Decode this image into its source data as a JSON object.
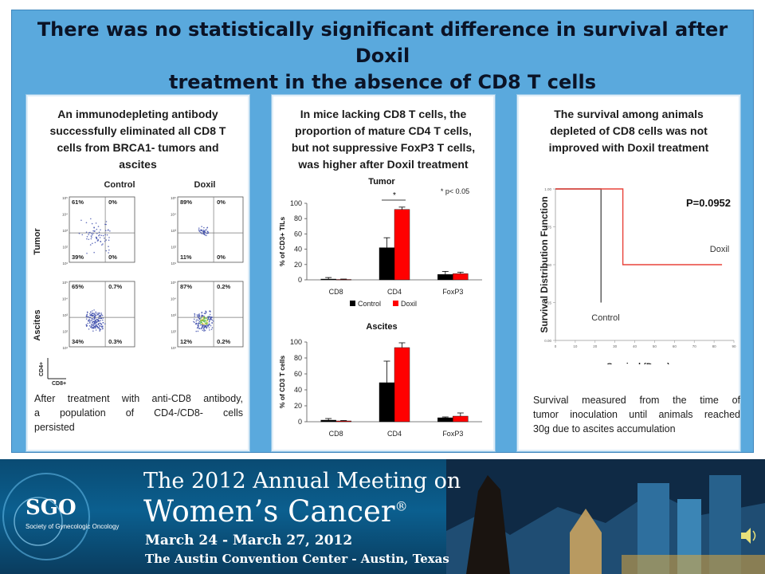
{
  "title_line1": "There was no statistically significant difference in survival after Doxil",
  "title_line2": "treatment in the absence of CD8 T cells",
  "panels": [
    {
      "title_lines": [
        "An immunodepleting antibody",
        "successfully eliminated all CD8 T",
        "cells from  BRCA1- tumors and",
        "ascites"
      ],
      "caption_lines": [
        "After treatment with anti-CD8 antibody,",
        "a population of CD4-/CD8- cells",
        "persisted"
      ]
    },
    {
      "title_lines": [
        "In mice lacking CD8 T cells, the",
        "proportion of mature CD4 T cells,",
        "but not suppressive FoxP3 T cells,",
        "was higher after Doxil treatment"
      ]
    },
    {
      "title_lines": [
        "The survival among animals",
        "depleted of CD8 cells was not",
        "improved with Doxil treatment"
      ],
      "caption_lines": [
        "Survival measured from the time of",
        "tumor inoculation until animals reached",
        "30g due to ascites accumulation"
      ]
    }
  ],
  "flow": {
    "col_labels": [
      "Control",
      "Doxil"
    ],
    "row_labels": [
      "Tumor",
      "Ascites"
    ],
    "axis_y": "CD4+",
    "axis_x": "CD8+",
    "tick_labels": [
      "10⁵",
      "10⁴",
      "10³",
      "10²",
      "10¹"
    ],
    "quadrants": [
      [
        "61%",
        "0%",
        "39%",
        "0%"
      ],
      [
        "89%",
        "0%",
        "11%",
        "0%"
      ],
      [
        "65%",
        "0.7%",
        "34%",
        "0.3%"
      ],
      [
        "87%",
        "0.2%",
        "12%",
        "0.2%"
      ]
    ]
  },
  "chart_data": [
    {
      "type": "bar",
      "title": "Tumor",
      "ylabel": "% of CD3+ TILs",
      "categories": [
        "CD8",
        "CD4",
        "FoxP3"
      ],
      "ylim": [
        0,
        100
      ],
      "yticks": [
        0,
        20,
        40,
        60,
        80,
        100
      ],
      "series": [
        {
          "name": "Control",
          "color": "#000000",
          "values": [
            1,
            42,
            7
          ],
          "errors": [
            2,
            13,
            4
          ]
        },
        {
          "name": "Doxil",
          "color": "#ff0000",
          "values": [
            0.5,
            92,
            8
          ],
          "errors": [
            0.5,
            3,
            2
          ]
        }
      ],
      "annotation": "* p< 0.05",
      "significance_marker": "*",
      "legend_position": "bottom"
    },
    {
      "type": "bar",
      "title": "Ascites",
      "ylabel": "% of CD3 T cells",
      "categories": [
        "CD8",
        "CD4",
        "FoxP3"
      ],
      "ylim": [
        0,
        100
      ],
      "yticks": [
        0,
        20,
        40,
        60,
        80,
        100
      ],
      "series": [
        {
          "name": "Control",
          "color": "#000000",
          "values": [
            2,
            49,
            5
          ],
          "errors": [
            2,
            27,
            1
          ]
        },
        {
          "name": "Doxil",
          "color": "#ff0000",
          "values": [
            1,
            93,
            7
          ],
          "errors": [
            0.5,
            6,
            4
          ]
        }
      ]
    },
    {
      "type": "line",
      "title": "",
      "xlabel": "Survival (Days)",
      "ylabel": "Survival Distribution Function",
      "xlim": [
        0,
        90
      ],
      "ylim": [
        0,
        1
      ],
      "xticks": [
        0,
        10,
        20,
        30,
        40,
        50,
        60,
        70,
        80,
        90
      ],
      "yticks": [
        0.0,
        0.25,
        0.5,
        0.75,
        1.0
      ],
      "ytick_labels": [
        "0.00",
        "0.25",
        "0.50",
        "0.75",
        "1.00"
      ],
      "series": [
        {
          "name": "Control",
          "color": "#555555",
          "x": [
            0,
            23,
            23
          ],
          "y": [
            1.0,
            1.0,
            0.25
          ]
        },
        {
          "name": "Doxil",
          "color": "#e8433a",
          "x": [
            0,
            34,
            34,
            84
          ],
          "y": [
            1.0,
            1.0,
            0.5,
            0.5
          ]
        }
      ],
      "series_labels": [
        "Doxil",
        "Control"
      ],
      "pvalue": "P=0.0952"
    }
  ],
  "banner": {
    "logo": "SGO",
    "logo_subtitle": "Society of Gynecologic Oncology",
    "line1": "The 2012 Annual Meeting on",
    "line2": "Women’s Cancer",
    "reg": "®",
    "line3": "March 24 - March 27, 2012",
    "line4": "The Austin Convention Center - Austin, Texas"
  },
  "speaker_icon": "speaker-icon"
}
